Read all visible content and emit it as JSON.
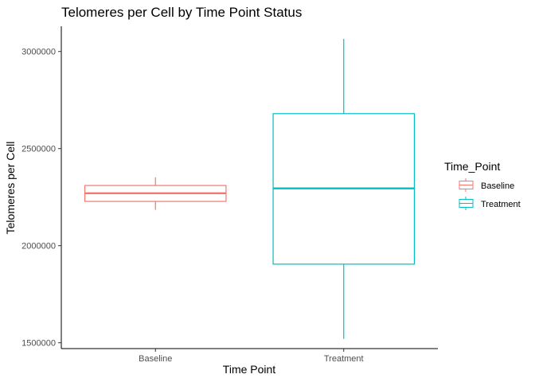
{
  "chart_data": {
    "type": "box",
    "title": "Telomeres per Cell by Time Point Status",
    "xlabel": "Time Point",
    "ylabel": "Telomeres per Cell",
    "categories": [
      "Baseline",
      "Treatment"
    ],
    "ylim": [
      1470000,
      3130000
    ],
    "yticks": [
      1500000,
      2000000,
      2500000,
      3000000
    ],
    "ytick_labels": [
      "1500000",
      "2000000",
      "2500000",
      "3000000"
    ],
    "grid": false,
    "boxes": [
      {
        "category": "Baseline",
        "color": "#F8766D",
        "min": 2185000,
        "q1": 2228000,
        "median": 2270000,
        "q3": 2310000,
        "max": 2352000
      },
      {
        "category": "Treatment",
        "color": "#00BFC4",
        "min": 1520000,
        "q1": 1905000,
        "median": 2295000,
        "q3": 2680000,
        "max": 3065000
      }
    ],
    "legend": {
      "title": "Time_Point",
      "position": "right",
      "entries": [
        {
          "label": "Baseline",
          "color": "#F8766D"
        },
        {
          "label": "Treatment",
          "color": "#00BFC4"
        }
      ]
    }
  }
}
